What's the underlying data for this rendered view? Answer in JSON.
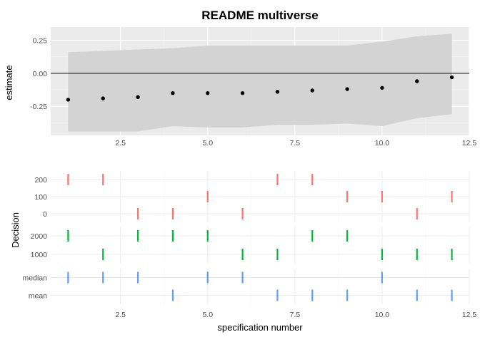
{
  "chart_data": {
    "type": "scatter",
    "title": "README multiverse",
    "top_panel": {
      "ylabel": "estimate",
      "xlim": [
        0.5,
        12.5
      ],
      "ylim": [
        -0.47,
        0.35
      ],
      "x_ticks": [
        2.5,
        5.0,
        7.5,
        10.0,
        12.5
      ],
      "x_tick_labels": [
        "2.5",
        "5.0",
        "7.5",
        "10.0",
        "12.5"
      ],
      "y_ticks": [
        0.25,
        0.0,
        -0.25
      ],
      "y_tick_labels": [
        "0.25",
        "0.00",
        "-0.25"
      ],
      "reference_line": 0,
      "x": [
        1,
        2,
        3,
        4,
        5,
        6,
        7,
        8,
        9,
        10,
        11,
        12
      ],
      "estimate": [
        -0.2,
        -0.19,
        -0.18,
        -0.15,
        -0.15,
        -0.15,
        -0.14,
        -0.13,
        -0.12,
        -0.11,
        -0.06,
        -0.03
      ],
      "ci_upper": [
        0.16,
        0.17,
        0.18,
        0.19,
        0.21,
        0.21,
        0.21,
        0.21,
        0.21,
        0.24,
        0.28,
        0.3
      ],
      "ci_lower": [
        -0.44,
        -0.44,
        -0.44,
        -0.4,
        -0.41,
        -0.41,
        -0.39,
        -0.39,
        -0.38,
        -0.4,
        -0.34,
        -0.31
      ],
      "colors": {
        "panel_bg": "#ebebeb",
        "ribbon": "#d3d3d3",
        "point": "#000000"
      }
    },
    "bottom_panel": {
      "ylabel": "Decision",
      "xlabel": "specification number",
      "x_ticks": [
        2.5,
        5.0,
        7.5,
        10.0,
        12.5
      ],
      "x_tick_labels": [
        "2.5",
        "5.0",
        "7.5",
        "10.0",
        "12.5"
      ],
      "facets": [
        {
          "levels": [
            "200",
            "100",
            "0"
          ],
          "color": "#f8766d",
          "assignments": [
            "200",
            "200",
            "0",
            "0",
            "100",
            "0",
            "200",
            "200",
            "100",
            "100",
            "0",
            "100"
          ]
        },
        {
          "levels": [
            "2000",
            "1000"
          ],
          "color": "#00ba38",
          "assignments": [
            "2000",
            "1000",
            "2000",
            "2000",
            "2000",
            "1000",
            "1000",
            "2000",
            "2000",
            "1000",
            "1000",
            "1000"
          ]
        },
        {
          "levels": [
            "median",
            "mean"
          ],
          "color": "#619cff",
          "assignments": [
            "median",
            "median",
            "median",
            "mean",
            "median",
            "median",
            "mean",
            "mean",
            "mean",
            "median",
            "mean",
            "mean"
          ]
        }
      ]
    }
  }
}
